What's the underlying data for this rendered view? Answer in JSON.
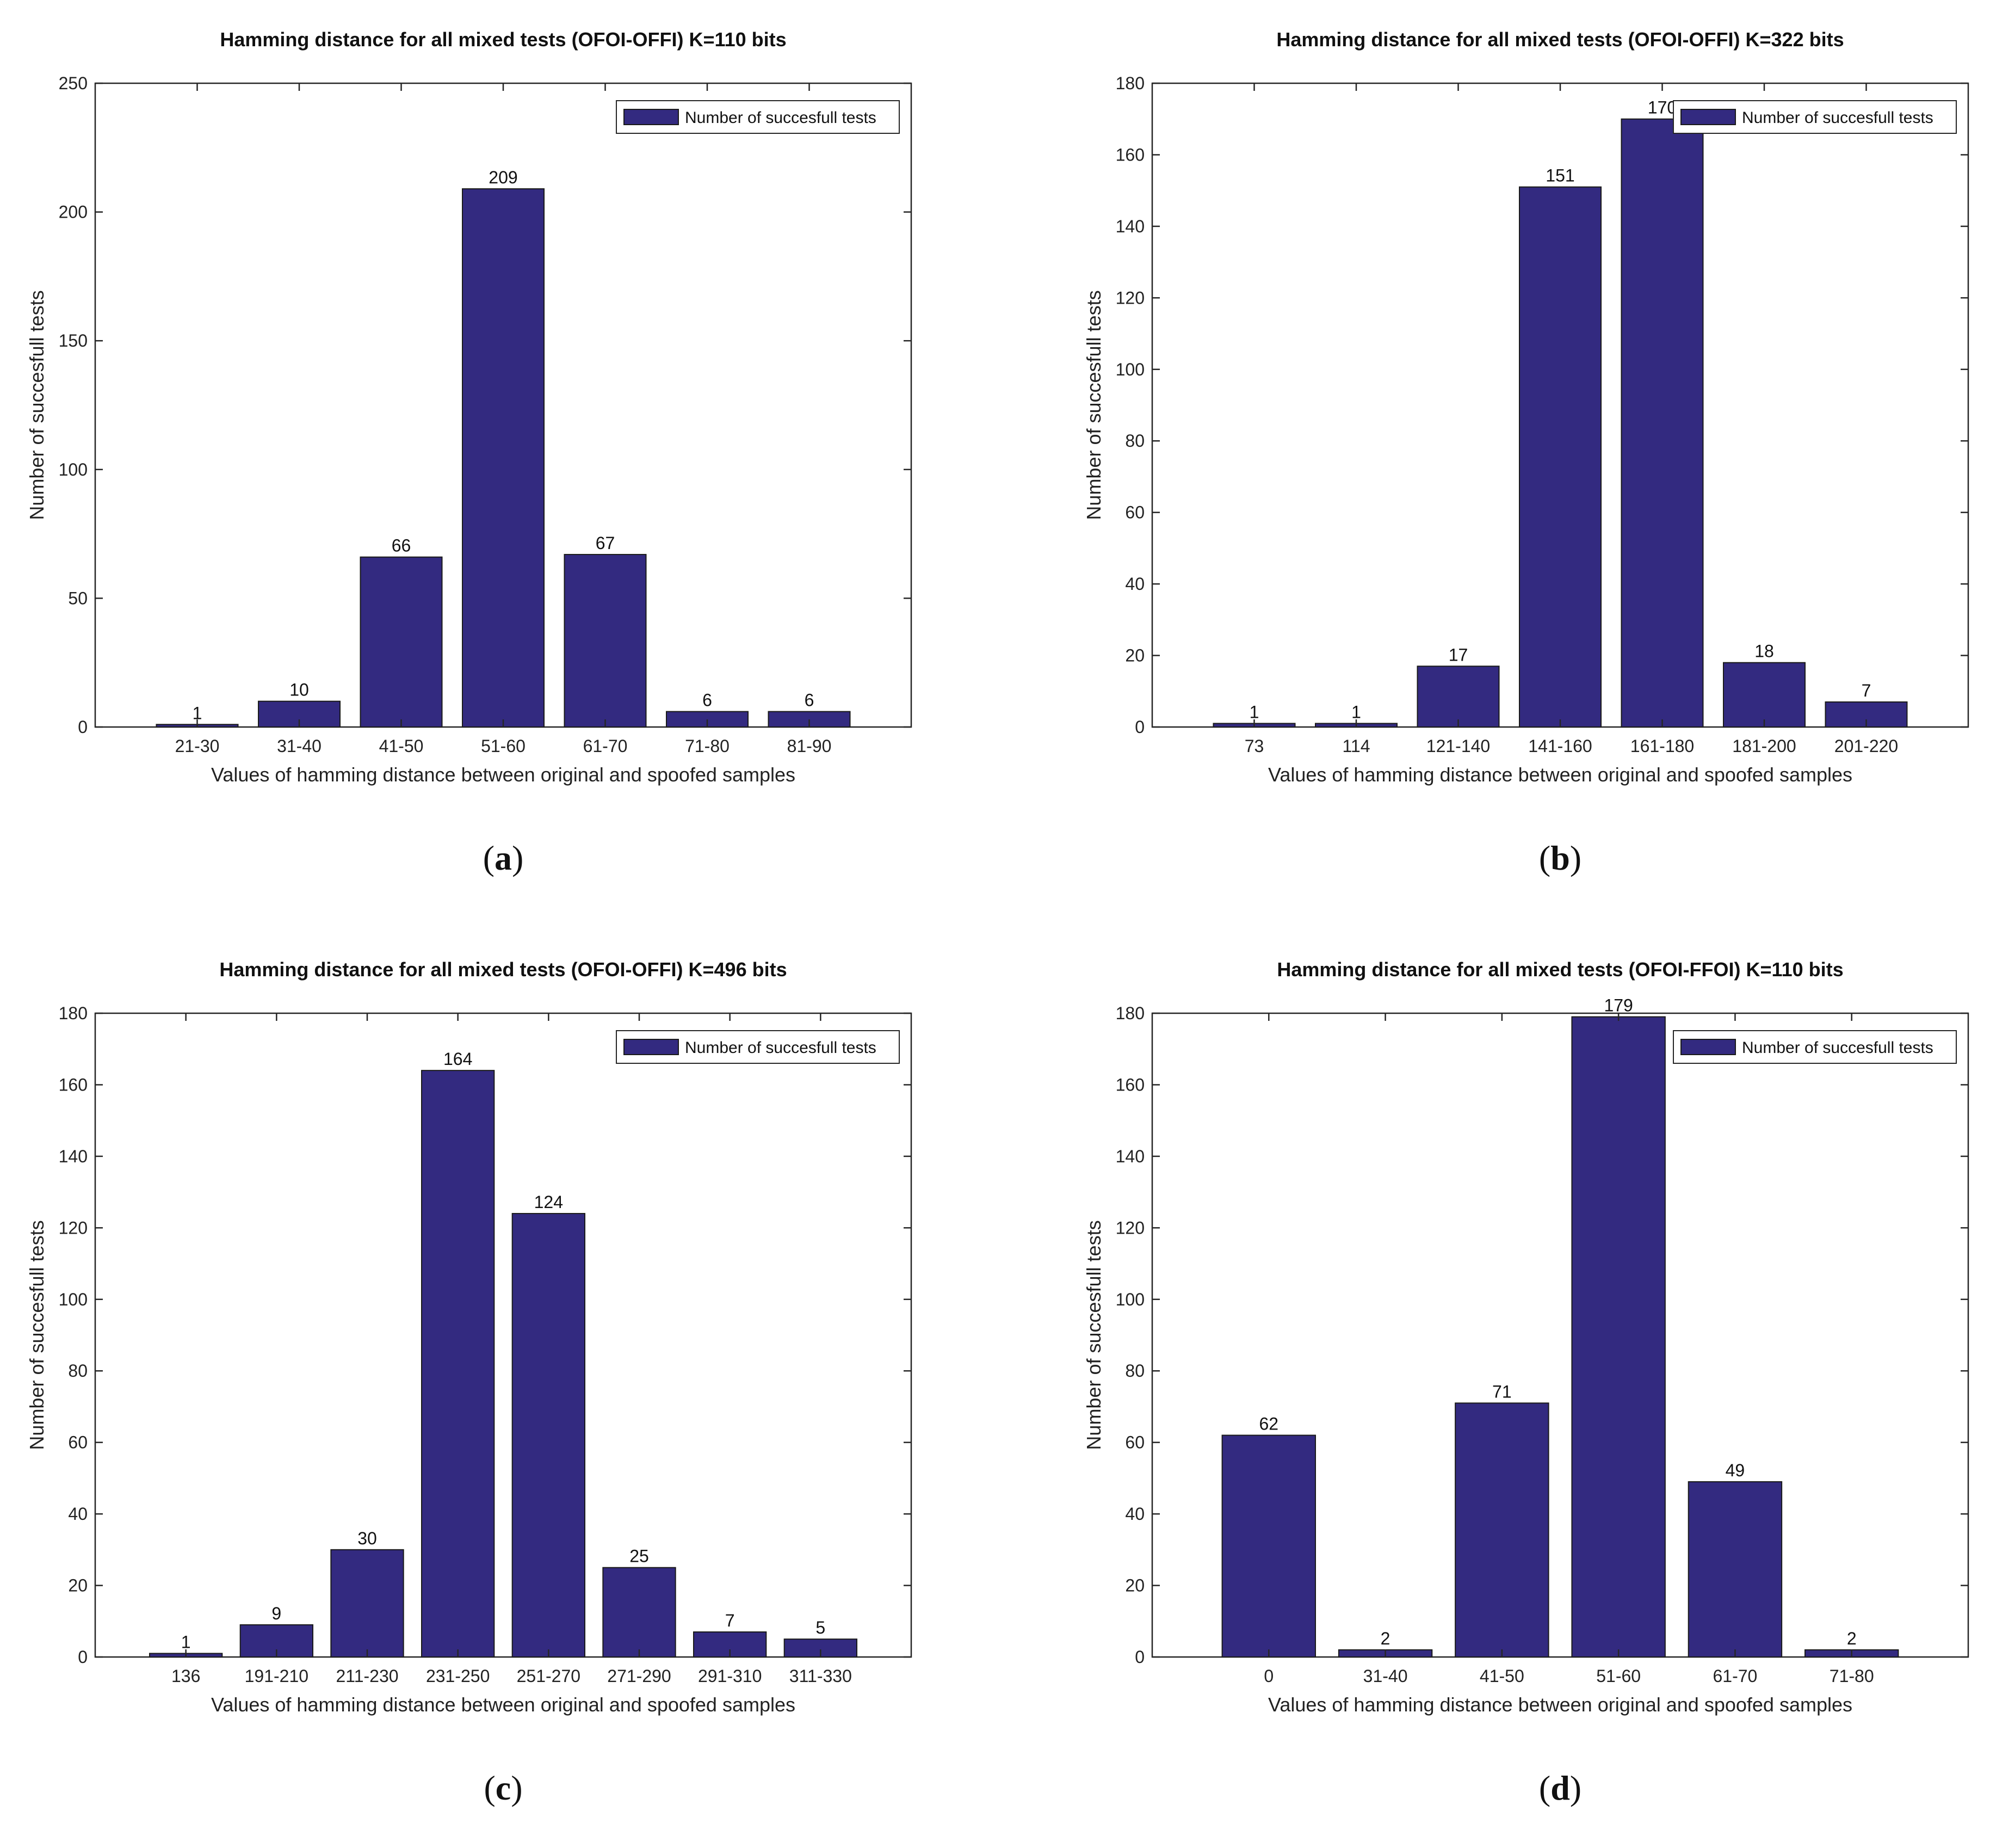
{
  "chart_data": [
    {
      "id": "a",
      "type": "bar",
      "title": "Hamming distance for all mixed tests (OFOI-OFFI) K=110 bits",
      "xlabel": "Values of hamming distance between original and spoofed samples",
      "ylabel": "Number of succesfull tests",
      "categories": [
        "21-30",
        "31-40",
        "41-50",
        "51-60",
        "61-70",
        "71-80",
        "81-90"
      ],
      "values": [
        1,
        10,
        66,
        209,
        67,
        6,
        6
      ],
      "ylim": [
        0,
        250
      ],
      "yticks": [
        0,
        50,
        100,
        150,
        200,
        250
      ],
      "legend": {
        "label": "Number of succesfull tests",
        "position": "top-right"
      },
      "bar_color": "#332a80",
      "caption": "a"
    },
    {
      "id": "b",
      "type": "bar",
      "title": "Hamming distance for all mixed tests (OFOI-OFFI) K=322 bits",
      "xlabel": "Values of hamming distance between original and spoofed samples",
      "ylabel": "Number of succesfull tests",
      "categories": [
        "73",
        "114",
        "121-140",
        "141-160",
        "161-180",
        "181-200",
        "201-220"
      ],
      "values": [
        1,
        1,
        17,
        151,
        170,
        18,
        7
      ],
      "ylim": [
        0,
        180
      ],
      "yticks": [
        0,
        20,
        40,
        60,
        80,
        100,
        120,
        140,
        160,
        180
      ],
      "legend": {
        "label": "Number of succesfull tests",
        "position": "top-right"
      },
      "bar_color": "#332a80",
      "caption": "b"
    },
    {
      "id": "c",
      "type": "bar",
      "title": "Hamming distance for all mixed tests (OFOI-OFFI) K=496 bits",
      "xlabel": "Values of hamming distance between original and spoofed samples",
      "ylabel": "Number of succesfull tests",
      "categories": [
        "136",
        "191-210",
        "211-230",
        "231-250",
        "251-270",
        "271-290",
        "291-310",
        "311-330"
      ],
      "values": [
        1,
        9,
        30,
        164,
        124,
        25,
        7,
        5
      ],
      "ylim": [
        0,
        180
      ],
      "yticks": [
        0,
        20,
        40,
        60,
        80,
        100,
        120,
        140,
        160,
        180
      ],
      "legend": {
        "label": "Number of succesfull tests",
        "position": "top-right"
      },
      "bar_color": "#332a80",
      "caption": "c"
    },
    {
      "id": "d",
      "type": "bar",
      "title": "Hamming distance for all mixed tests (OFOI-FFOI) K=110 bits",
      "xlabel": "Values of hamming distance between original and spoofed samples",
      "ylabel": "Number of succesfull tests",
      "categories": [
        "0",
        "31-40",
        "41-50",
        "51-60",
        "61-70",
        "71-80"
      ],
      "values": [
        62,
        2,
        71,
        179,
        49,
        2
      ],
      "ylim": [
        0,
        180
      ],
      "yticks": [
        0,
        20,
        40,
        60,
        80,
        100,
        120,
        140,
        160,
        180
      ],
      "legend": {
        "label": "Number of succesfull tests",
        "position": "top-right"
      },
      "bar_color": "#332a80",
      "caption": "d"
    }
  ]
}
